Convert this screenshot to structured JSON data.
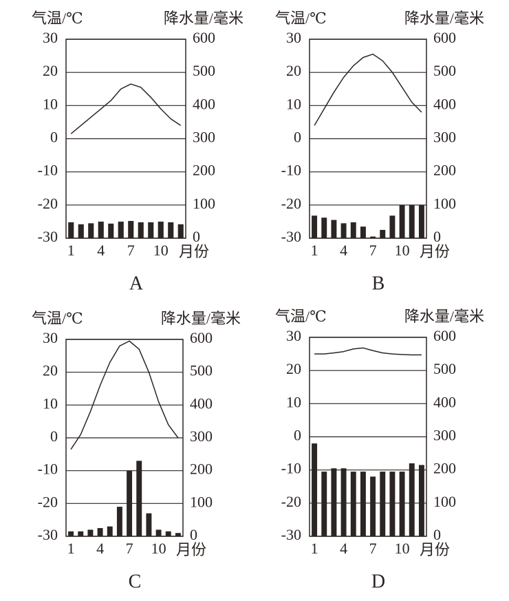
{
  "chart_data": [
    {
      "type": "combo",
      "title": "A",
      "y_label": "气温/℃",
      "y2_label": "降水量/毫米",
      "x_label": "月份",
      "categories": [
        1,
        null,
        null,
        4,
        null,
        null,
        7,
        null,
        null,
        10,
        null,
        null
      ],
      "ylim": [
        -30,
        30
      ],
      "yticks": [
        30,
        20,
        10,
        0,
        -10,
        -20,
        -30
      ],
      "y2lim": [
        0,
        600
      ],
      "y2ticks": [
        600,
        500,
        400,
        300,
        200,
        100,
        0
      ],
      "grid": true,
      "series": [
        {
          "type": "bar",
          "axis": "y2",
          "color": "#2b2523",
          "values": [
            48,
            42,
            45,
            50,
            44,
            50,
            52,
            48,
            48,
            50,
            48,
            42
          ]
        },
        {
          "type": "line",
          "color": "#2b2523",
          "values": [
            1.5,
            4,
            6.5,
            9,
            11.5,
            15,
            16.5,
            15.5,
            12.5,
            9,
            6,
            4
          ]
        }
      ]
    },
    {
      "type": "combo",
      "title": "B",
      "y_label": "气温/℃",
      "y2_label": "降水量/毫米",
      "x_label": "月份",
      "categories": [
        1,
        null,
        null,
        4,
        null,
        null,
        7,
        null,
        null,
        10,
        null,
        null
      ],
      "ylim": [
        -30,
        30
      ],
      "yticks": [
        30,
        20,
        10,
        0,
        -10,
        -20,
        -30
      ],
      "y2lim": [
        0,
        600
      ],
      "y2ticks": [
        600,
        500,
        400,
        300,
        200,
        100,
        0
      ],
      "grid": true,
      "series": [
        {
          "type": "bar",
          "axis": "y2",
          "color": "#2b2523",
          "values": [
            68,
            62,
            55,
            45,
            48,
            35,
            5,
            25,
            68,
            100,
            100,
            100
          ]
        },
        {
          "type": "line",
          "color": "#2b2523",
          "values": [
            4,
            9,
            14,
            18.5,
            22,
            24.5,
            25.5,
            23.5,
            20,
            15.5,
            11,
            8
          ]
        }
      ]
    },
    {
      "type": "combo",
      "title": "C",
      "y_label": "气温/℃",
      "y2_label": "降水量/毫米",
      "x_label": "月份",
      "categories": [
        1,
        null,
        null,
        4,
        null,
        null,
        7,
        null,
        null,
        10,
        null,
        null
      ],
      "ylim": [
        -30,
        30
      ],
      "yticks": [
        30,
        20,
        10,
        0,
        -10,
        -20,
        -30
      ],
      "y2lim": [
        0,
        600
      ],
      "y2ticks": [
        600,
        500,
        400,
        300,
        200,
        100,
        0
      ],
      "grid": true,
      "series": [
        {
          "type": "bar",
          "axis": "y2",
          "color": "#2b2523",
          "values": [
            15,
            15,
            20,
            25,
            30,
            90,
            200,
            230,
            70,
            20,
            15,
            10
          ]
        },
        {
          "type": "line",
          "color": "#2b2523",
          "values": [
            -3.5,
            1,
            8,
            16,
            23,
            28,
            29.5,
            27,
            20,
            11,
            4,
            0
          ]
        }
      ]
    },
    {
      "type": "combo",
      "title": "D",
      "y_label": "气温/℃",
      "y2_label": "降水量/毫米",
      "x_label": "月份",
      "categories": [
        1,
        null,
        null,
        4,
        null,
        null,
        7,
        null,
        null,
        10,
        null,
        null
      ],
      "ylim": [
        -30,
        30
      ],
      "yticks": [
        30,
        20,
        10,
        0,
        -10,
        -20,
        -30
      ],
      "y2lim": [
        0,
        600
      ],
      "y2ticks": [
        600,
        500,
        400,
        300,
        200,
        100,
        0
      ],
      "grid": true,
      "series": [
        {
          "type": "bar",
          "axis": "y2",
          "color": "#2b2523",
          "values": [
            280,
            195,
            205,
            205,
            195,
            195,
            180,
            195,
            195,
            195,
            220,
            215
          ]
        },
        {
          "type": "line",
          "color": "#2b2523",
          "values": [
            25,
            25,
            25.3,
            25.7,
            26.5,
            26.8,
            26,
            25.3,
            25,
            24.8,
            24.7,
            24.7
          ]
        }
      ]
    }
  ]
}
